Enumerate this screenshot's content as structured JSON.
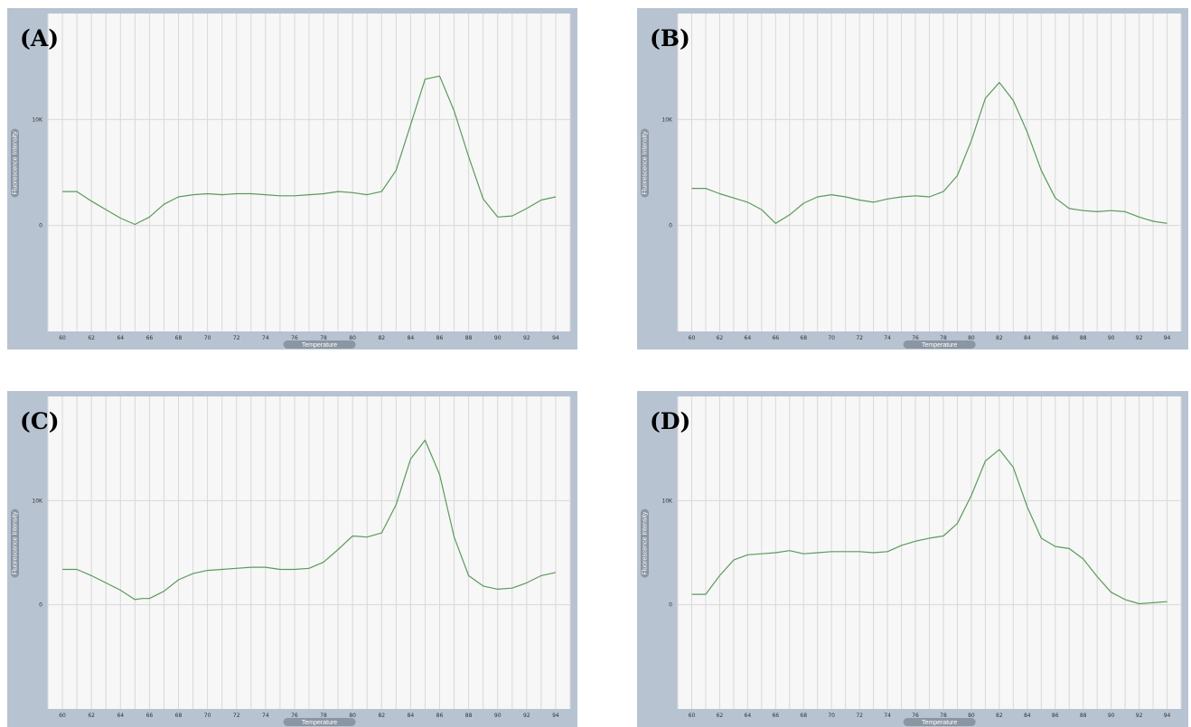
{
  "colors": {
    "frame": "#b7c3d1",
    "plot_bg": "#f7f7f7",
    "grid": "#d8d8d8",
    "line": "#5b9a5b",
    "label_pill": "#8b96a3"
  },
  "chart_data": [
    {
      "type": "line",
      "panel": "(A)",
      "xlabel": "Temperature",
      "ylabel": "Fluorescence Intensity",
      "xlim": [
        59,
        95
      ],
      "ylim": [
        -10000,
        20000
      ],
      "xticks": [
        "60",
        "62",
        "64",
        "66",
        "68",
        "70",
        "72",
        "74",
        "76",
        "78",
        "80",
        "82",
        "84",
        "86",
        "88",
        "90",
        "92",
        "94"
      ],
      "yticks": [
        {
          "v": 10000,
          "label": "10K"
        },
        {
          "v": 0,
          "label": "0"
        }
      ],
      "grid": "vertical lines every 1°C, horizontal at 0 and 10K",
      "series": [
        {
          "x": [
            60,
            61,
            62,
            63,
            64,
            65,
            66,
            67,
            68,
            69,
            70,
            71,
            72,
            73,
            74,
            75,
            76,
            77,
            78,
            79,
            80,
            81,
            82,
            83,
            84,
            85,
            86,
            87,
            88,
            89,
            90,
            91,
            92,
            93,
            94
          ],
          "y": [
            3200,
            3200,
            2300,
            1500,
            700,
            100,
            800,
            2000,
            2700,
            2900,
            3000,
            2900,
            3000,
            3000,
            2900,
            2800,
            2800,
            2900,
            3000,
            3200,
            3100,
            2900,
            3200,
            5200,
            9500,
            13800,
            14100,
            10800,
            6500,
            2500,
            800,
            900,
            1600,
            2400,
            2700
          ]
        }
      ]
    },
    {
      "type": "line",
      "panel": "(B)",
      "xlabel": "Temperature",
      "ylabel": "Fluorescence Intensity",
      "xlim": [
        59,
        95
      ],
      "ylim": [
        -10000,
        20000
      ],
      "xticks": [
        "60",
        "62",
        "64",
        "66",
        "68",
        "70",
        "72",
        "74",
        "76",
        "78",
        "80",
        "82",
        "84",
        "86",
        "88",
        "90",
        "92",
        "94"
      ],
      "yticks": [
        {
          "v": 10000,
          "label": "10K"
        },
        {
          "v": 0,
          "label": "0"
        }
      ],
      "grid": "vertical lines every 1°C, horizontal at 0 and 10K",
      "series": [
        {
          "x": [
            60,
            61,
            62,
            63,
            64,
            65,
            66,
            67,
            68,
            69,
            70,
            71,
            72,
            73,
            74,
            75,
            76,
            77,
            78,
            79,
            80,
            81,
            82,
            83,
            84,
            85,
            86,
            87,
            88,
            89,
            90,
            91,
            92,
            93,
            94
          ],
          "y": [
            3500,
            3500,
            3000,
            2600,
            2200,
            1500,
            200,
            1000,
            2100,
            2700,
            2900,
            2700,
            2400,
            2200,
            2500,
            2700,
            2800,
            2700,
            3200,
            4700,
            8000,
            12000,
            13500,
            11800,
            8800,
            5200,
            2600,
            1600,
            1400,
            1300,
            1400,
            1300,
            800,
            400,
            200
          ]
        }
      ]
    },
    {
      "type": "line",
      "panel": "(C)",
      "xlabel": "Temperature",
      "ylabel": "Fluorescence Intensity",
      "xlim": [
        59,
        95
      ],
      "ylim": [
        -10000,
        20000
      ],
      "xticks": [
        "60",
        "62",
        "64",
        "66",
        "68",
        "70",
        "72",
        "74",
        "76",
        "78",
        "80",
        "82",
        "84",
        "86",
        "88",
        "90",
        "92",
        "94"
      ],
      "yticks": [
        {
          "v": 10000,
          "label": "10K"
        },
        {
          "v": 0,
          "label": "0"
        }
      ],
      "grid": "vertical lines every 1°C, horizontal at 0 and 10K",
      "series": [
        {
          "x": [
            60,
            61,
            62,
            63,
            64,
            65,
            65.5,
            66,
            67,
            68,
            69,
            70,
            71,
            72,
            73,
            74,
            75,
            76,
            77,
            78,
            79,
            80,
            81,
            82,
            83,
            84,
            85,
            86,
            87,
            88,
            89,
            90,
            91,
            92,
            93,
            94
          ],
          "y": [
            3400,
            3400,
            2800,
            2100,
            1400,
            500,
            600,
            600,
            1300,
            2400,
            3000,
            3300,
            3400,
            3500,
            3600,
            3600,
            3400,
            3400,
            3500,
            4100,
            5300,
            6600,
            6500,
            6900,
            9600,
            14000,
            15800,
            12500,
            6500,
            2800,
            1800,
            1500,
            1600,
            2100,
            2800,
            3100
          ]
        }
      ]
    },
    {
      "type": "line",
      "panel": "(D)",
      "xlabel": "Temperature",
      "ylabel": "Fluorescence Intensity",
      "xlim": [
        59,
        95
      ],
      "ylim": [
        -10000,
        20000
      ],
      "xticks": [
        "60",
        "62",
        "64",
        "66",
        "68",
        "70",
        "72",
        "74",
        "76",
        "78",
        "80",
        "82",
        "84",
        "86",
        "88",
        "90",
        "92",
        "94"
      ],
      "yticks": [
        {
          "v": 10000,
          "label": "10K"
        },
        {
          "v": 0,
          "label": "0"
        }
      ],
      "grid": "vertical lines every 1°C, horizontal at 0 and 10K",
      "series": [
        {
          "x": [
            60,
            61,
            62,
            63,
            64,
            65,
            66,
            67,
            68,
            69,
            70,
            71,
            72,
            73,
            74,
            75,
            76,
            77,
            78,
            79,
            80,
            81,
            82,
            83,
            84,
            85,
            86,
            87,
            88,
            89,
            90,
            91,
            92,
            93,
            94
          ],
          "y": [
            1000,
            1000,
            2800,
            4300,
            4800,
            4900,
            5000,
            5200,
            4900,
            5000,
            5100,
            5100,
            5100,
            5000,
            5100,
            5700,
            6100,
            6400,
            6600,
            7800,
            10500,
            13800,
            14900,
            13200,
            9400,
            6400,
            5600,
            5400,
            4400,
            2700,
            1200,
            500,
            100,
            200,
            300
          ]
        }
      ]
    }
  ]
}
